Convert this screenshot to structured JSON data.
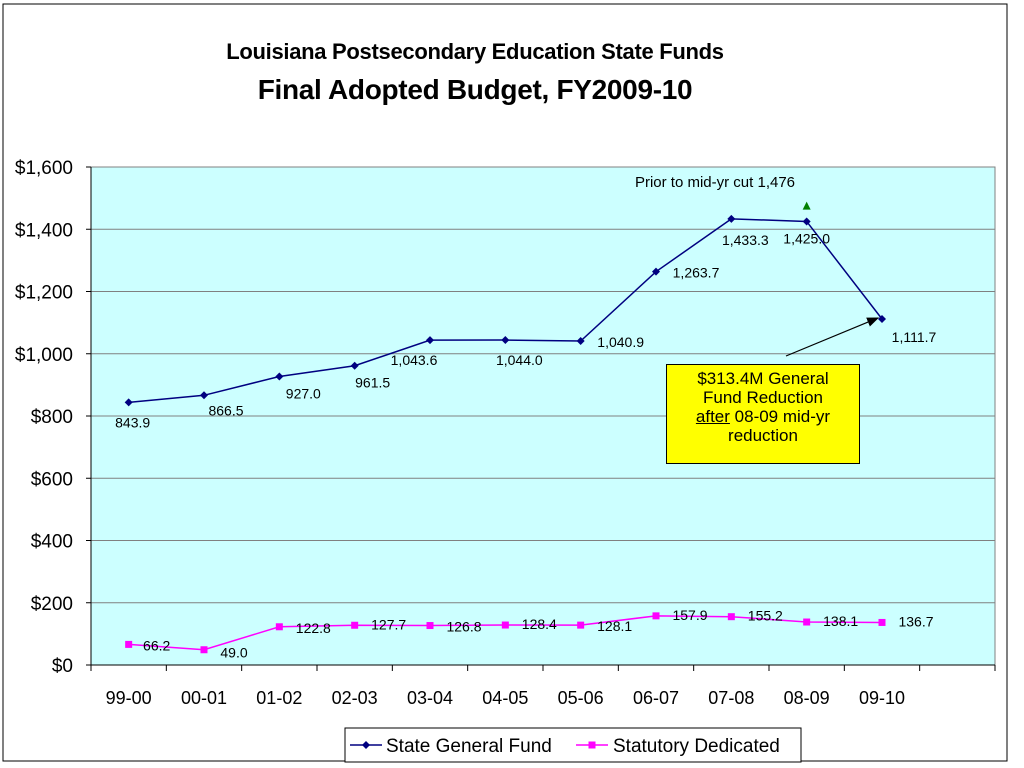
{
  "chart_data": {
    "type": "line",
    "title": "Louisiana Postsecondary Education State Funds",
    "subtitle": "Final Adopted Budget, FY2009-10",
    "categories": [
      "99-00",
      "00-01",
      "01-02",
      "02-03",
      "03-04",
      "04-05",
      "05-06",
      "06-07",
      "07-08",
      "08-09",
      "09-10"
    ],
    "ylim": [
      0,
      1600
    ],
    "y_ticks": [
      "$0",
      "$200",
      "$400",
      "$600",
      "$800",
      "$1,000",
      "$1,200",
      "$1,400",
      "$1,600"
    ],
    "y_tick_values": [
      0,
      200,
      400,
      600,
      800,
      1000,
      1200,
      1400,
      1600
    ],
    "grid": true,
    "legend_position": "bottom",
    "plot_background": "#ccffff",
    "series": [
      {
        "name": "State General Fund",
        "color": "#000080",
        "marker": "diamond",
        "values": [
          843.9,
          866.5,
          927.0,
          961.5,
          1043.6,
          1044.0,
          1040.9,
          1263.7,
          1433.3,
          1425.0,
          1111.7
        ],
        "labels": [
          "843.9",
          "866.5",
          "927.0",
          "961.5",
          "1,043.6",
          "1,044.0",
          "1,040.9",
          "1,263.7",
          "1,433.3",
          "1,425.0",
          "1,111.7"
        ]
      },
      {
        "name": "Statutory Dedicated",
        "color": "#ff00ff",
        "marker": "square",
        "values": [
          66.2,
          49.0,
          122.8,
          127.7,
          126.8,
          128.4,
          128.1,
          157.9,
          155.2,
          138.1,
          136.7
        ],
        "labels": [
          "66.2",
          "49.0",
          "122.8",
          "127.7",
          "126.8",
          "128.4",
          "128.1",
          "157.9",
          "155.2",
          "138.1",
          "136.7"
        ]
      }
    ],
    "annotations": [
      {
        "text": "Prior to mid-yr cut 1,476",
        "category": "08-09",
        "value": 1476,
        "marker": "triangle",
        "color": "#008000"
      }
    ],
    "callout": {
      "line1": "$313.4M General",
      "line2": "Fund Reduction",
      "line3_emphasis": "after",
      "line3_rest": " 08-09 mid-yr",
      "line4": "reduction",
      "background": "#ffff00",
      "points_to_category": "09-10"
    }
  }
}
